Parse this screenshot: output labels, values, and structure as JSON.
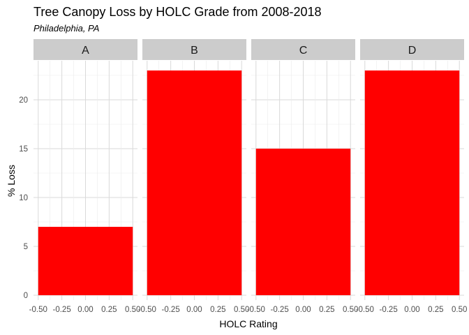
{
  "chart_data": {
    "type": "bar",
    "title": "Tree Canopy Loss by HOLC Grade from 2008-2018",
    "subtitle": "Philadelphia, PA",
    "xlabel": "HOLC Rating",
    "ylabel": "% Loss",
    "facets": [
      "A",
      "B",
      "C",
      "D"
    ],
    "values": [
      7,
      23,
      15,
      23
    ],
    "ylim": [
      -0.5,
      24
    ],
    "yticks": [
      0,
      5,
      10,
      15,
      20
    ],
    "xlim": [
      -0.55,
      0.55
    ],
    "xticks": [
      -0.5,
      -0.25,
      0,
      0.25,
      0.5
    ],
    "xtick_labels": [
      "-0.50",
      "-0.25",
      "0.00",
      "0.25",
      "0.50"
    ],
    "bar_x_range": [
      -0.5,
      0.5
    ],
    "bar_color": "#ff0000",
    "strip_color": "#cccccc",
    "grid": true,
    "legend": "none"
  }
}
